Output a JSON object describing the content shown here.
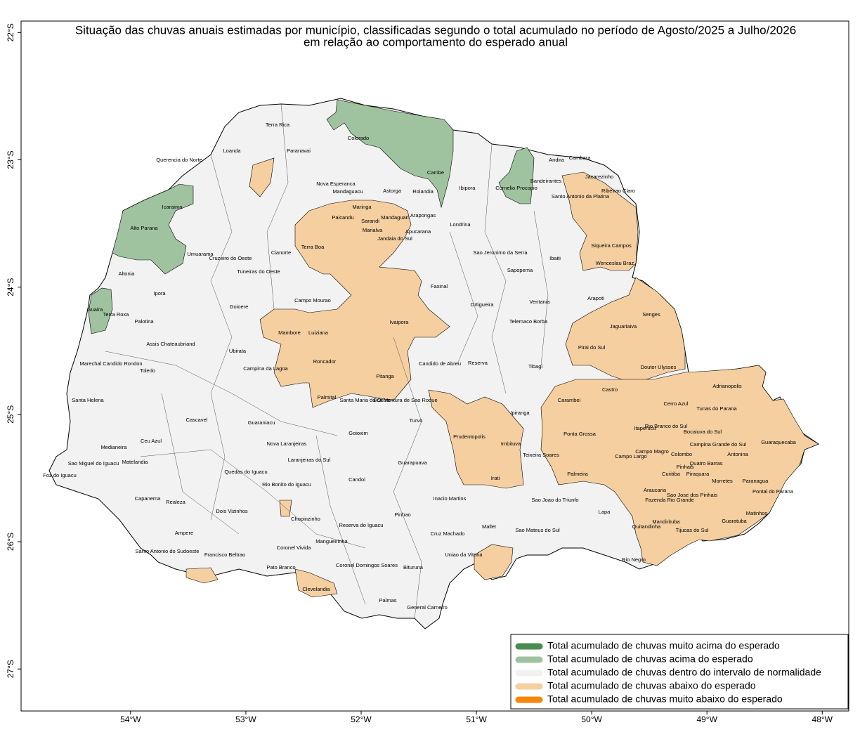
{
  "chart_data": {
    "type": "map",
    "title": "Situação das chuvas anuais estimadas por município, classificadas segundo o total acumulado no período de Agosto/2025 a Julho/2026",
    "subtitle": "em relação ao comportamento do esperado anual",
    "xlim": [
      -54.95,
      -47.77
    ],
    "ylim": [
      -27.33,
      -21.91
    ],
    "xticks": [
      {
        "value": -54,
        "label": "54°W"
      },
      {
        "value": -53,
        "label": "53°W"
      },
      {
        "value": -52,
        "label": "52°W"
      },
      {
        "value": -51,
        "label": "51°W"
      },
      {
        "value": -50,
        "label": "50°W"
      },
      {
        "value": -49,
        "label": "49°W"
      },
      {
        "value": -48,
        "label": "48°W"
      }
    ],
    "yticks": [
      {
        "value": -22,
        "label": "22°S"
      },
      {
        "value": -23,
        "label": "23°S"
      },
      {
        "value": -24,
        "label": "24°S"
      },
      {
        "value": -25,
        "label": "25°S"
      },
      {
        "value": -26,
        "label": "26°S"
      },
      {
        "value": -27,
        "label": "27°S"
      }
    ],
    "legend": [
      {
        "name": "Total acumulado de chuvas muito acima do esperado",
        "color": "#4a8b4f"
      },
      {
        "name": "Total acumulado de chuvas acima do esperado",
        "color": "#9fc39f"
      },
      {
        "name": "Total acumulado de chuvas dentro do intervalo de normalidade",
        "color": "#f2f2f2"
      },
      {
        "name": "Total acumulado de chuvas abaixo do esperado",
        "color": "#f5cfa0"
      },
      {
        "name": "Total acumulado de chuvas muito abaixo do esperado",
        "color": "#f5870a"
      }
    ],
    "municipality_labels": [
      "Terra Rica",
      "Loanda",
      "Paranavai",
      "Querencia do Norte",
      "Colorado",
      "Cambara",
      "Andira",
      "Jacarezinho",
      "Bandeirantes",
      "Ribeirao Claro",
      "Nova Esperanca",
      "Mandaguacu",
      "Astorga",
      "Rolandia",
      "Ibipora",
      "Cambe",
      "Cornelio Procopio",
      "Santo Antonio da Platina",
      "Icaraima",
      "Maringa",
      "Paicandu",
      "Sarandi",
      "Mandaguari",
      "Arapongas",
      "Marialva",
      "Apucarana",
      "Jandaia do Sul",
      "Londrina",
      "Alto Parana",
      "Terra Boa",
      "Cruzeiro do Oeste",
      "Umuarama",
      "Cianorte",
      "Sao Jeronimo da Serra",
      "Ibaiti",
      "Siqueira Campos",
      "Wenceslau Braz",
      "Sapopema",
      "Tuneiras do Oeste",
      "Altonia",
      "Faxinal",
      "Arapoti",
      "Ipora",
      "Campo Mourao",
      "Goioere",
      "Ortigueira",
      "Ventania",
      "Guaira",
      "Terra Roxa",
      "Senges",
      "Palotina",
      "Ivaipora",
      "Mambore",
      "Luiziana",
      "Telemaco Borba",
      "Jaguariaiva",
      "Assis Chateaubriand",
      "Pirai do Sul",
      "Ubirata",
      "Campina da Lagoa",
      "Marechal Candido Rondon",
      "Roncador",
      "Candido de Abreu",
      "Reserva",
      "Tibagi",
      "Doutor Ulysses",
      "Toledo",
      "Pitanga",
      "Adrianopolis",
      "Castro",
      "Palmital",
      "Santa Maria do Oeste",
      "Boa Ventura de Sao Roque",
      "Carambei",
      "Cerro Azul",
      "Tunas do Parana",
      "Santa Helena",
      "Turvo",
      "Cascavel",
      "Guaraniacu",
      "Ipiranga",
      "Itaperucu",
      "Rio Branco do Sul",
      "Bocaiuva do Sul",
      "Ponta Grossa",
      "Prudentopolis",
      "Goioxim",
      "Imbituva",
      "Nova Laranjeiras",
      "Ceu Azul",
      "Medianeira",
      "Campina Grande do Sul",
      "Teixeira Soares",
      "Campo Magro",
      "Guaraquecaba",
      "Antonina",
      "Colombo",
      "Sao Miguel do Iguacu",
      "Matelandia",
      "Campo Largo",
      "Guarapuava",
      "Quedas do Iguacu",
      "Laranjeiras do Sul",
      "Pinhais",
      "Quatro Barras",
      "Palmeira",
      "Curitiba",
      "Piraquara",
      "Foz do Iguacu",
      "Irati",
      "Rio Bonito do Iguacu",
      "Candoi",
      "Morretes",
      "Paranagua",
      "Pontal do Parana",
      "Araucaria",
      "Fazenda Rio Grande",
      "Sao Jose dos Pinhais",
      "Capanema",
      "Sao Joao do Triunfo",
      "Inacio Martins",
      "Realeza",
      "Lapa",
      "Dois Vizinhos",
      "Matinhos",
      "Chopinzinho",
      "Pinhao",
      "Guaratuba",
      "Mandirituba",
      "Reserva do Iguacu",
      "Mallet",
      "Tijucas do Sul",
      "Quitandinha",
      "Sao Mateus do Sul",
      "Ampere",
      "Cruz Machado",
      "Santo Antonio do Sudoeste",
      "Coronel Vivida",
      "Mangueirinha",
      "Francisco Beltrao",
      "Uniao da Vitoria",
      "Rio Negro",
      "Coronel Domingos Soares",
      "Bituruna",
      "Pato Branco",
      "Clevelandia",
      "Palmas",
      "General Carneiro"
    ]
  }
}
